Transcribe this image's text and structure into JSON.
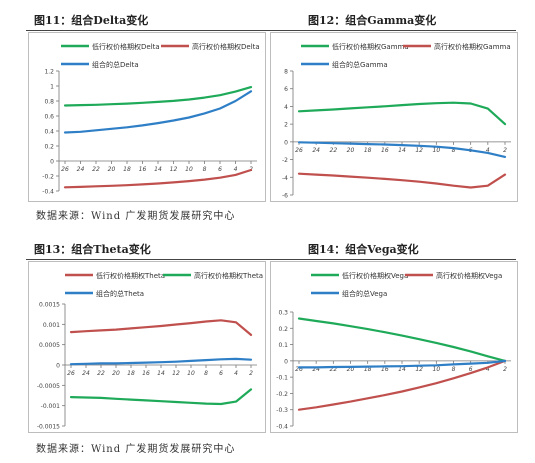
{
  "panels": [
    {
      "title": "图11：组合Delta变化"
    },
    {
      "title": "图12：组合Gamma变化"
    },
    {
      "title": "图13：组合Theta变化"
    },
    {
      "title": "图14：组合Vega变化"
    }
  ],
  "source_text": "数据来源：Wind 广发期货发展研究中心",
  "colors": {
    "green": "#1faa59",
    "red": "#c0504d",
    "blue": "#2f7fc7"
  },
  "chart_data": [
    {
      "type": "line",
      "title": "",
      "x": [
        26,
        24,
        22,
        20,
        18,
        16,
        14,
        12,
        10,
        8,
        6,
        4,
        2
      ],
      "xticks": [
        "26",
        "24",
        "22",
        "20",
        "18",
        "16",
        "14",
        "12",
        "10",
        "8",
        "6",
        "4",
        "2"
      ],
      "yticks": [
        "1.2",
        "1",
        "0.8",
        "0.6",
        "0.4",
        "0.2",
        "0",
        "-0.2",
        "-0.4"
      ],
      "ylim": [
        -0.4,
        1.2
      ],
      "grid": false,
      "legend_position": "top",
      "series": [
        {
          "name": "低行权价格期权Delta",
          "color": "green",
          "values": [
            0.74,
            0.745,
            0.75,
            0.758,
            0.766,
            0.776,
            0.788,
            0.802,
            0.82,
            0.845,
            0.878,
            0.925,
            0.985
          ]
        },
        {
          "name": "高行权价格期权Delta",
          "color": "red",
          "values": [
            -0.35,
            -0.345,
            -0.338,
            -0.33,
            -0.322,
            -0.312,
            -0.3,
            -0.285,
            -0.268,
            -0.248,
            -0.222,
            -0.185,
            -0.12
          ]
        },
        {
          "name": "组合的总Delta",
          "color": "blue",
          "values": [
            0.38,
            0.39,
            0.41,
            0.43,
            0.45,
            0.475,
            0.505,
            0.54,
            0.58,
            0.635,
            0.7,
            0.8,
            0.93
          ]
        }
      ]
    },
    {
      "type": "line",
      "title": "",
      "x": [
        26,
        24,
        22,
        20,
        18,
        16,
        14,
        12,
        10,
        8,
        6,
        4,
        2
      ],
      "xticks": [
        "26",
        "24",
        "22",
        "20",
        "18",
        "16",
        "14",
        "12",
        "10",
        "8",
        "6",
        "4",
        "2"
      ],
      "yticks": [
        "8",
        "6",
        "4",
        "2",
        "0",
        "-2",
        "-4",
        "-6"
      ],
      "ylim": [
        -6,
        8
      ],
      "grid": false,
      "legend_position": "top",
      "series": [
        {
          "name": "低行权价格期权Gamma",
          "color": "green",
          "values": [
            3.45,
            3.55,
            3.65,
            3.78,
            3.9,
            4.02,
            4.15,
            4.27,
            4.37,
            4.42,
            4.33,
            3.75,
            2.0
          ]
        },
        {
          "name": "高行权价格期权Gamma",
          "color": "red",
          "values": [
            -3.6,
            -3.7,
            -3.8,
            -3.92,
            -4.05,
            -4.18,
            -4.33,
            -4.5,
            -4.7,
            -4.95,
            -5.15,
            -4.95,
            -3.7
          ]
        },
        {
          "name": "组合的总Gamma",
          "color": "blue",
          "values": [
            -0.05,
            -0.1,
            -0.15,
            -0.2,
            -0.25,
            -0.3,
            -0.37,
            -0.45,
            -0.55,
            -0.7,
            -0.95,
            -1.25,
            -1.7
          ]
        }
      ]
    },
    {
      "type": "line",
      "title": "",
      "x": [
        26,
        24,
        22,
        20,
        18,
        16,
        14,
        12,
        10,
        8,
        6,
        4,
        2
      ],
      "xticks": [
        "26",
        "24",
        "22",
        "20",
        "18",
        "16",
        "14",
        "12",
        "10",
        "8",
        "6",
        "4",
        "2"
      ],
      "yticks": [
        "0.0015",
        "0.001",
        "0.0005",
        "0",
        "-0.0005",
        "-0.001",
        "-0.0015"
      ],
      "ylim": [
        -0.0015,
        0.0015
      ],
      "grid": false,
      "legend_position": "top",
      "series": [
        {
          "name": "低行权价格期权Theta",
          "color": "red",
          "values": [
            0.00081,
            0.00083,
            0.00085,
            0.00087,
            0.0009,
            0.00093,
            0.00096,
            0.000995,
            0.00103,
            0.00107,
            0.0011,
            0.00105,
            0.00074
          ]
        },
        {
          "name": "高行权价格期权Theta",
          "color": "green",
          "values": [
            -0.00079,
            -0.0008,
            -0.00081,
            -0.00083,
            -0.00085,
            -0.00087,
            -0.00089,
            -0.00091,
            -0.00093,
            -0.00095,
            -0.00096,
            -0.0009,
            -0.0006
          ]
        },
        {
          "name": "组合的总Theta",
          "color": "blue",
          "values": [
            2e-05,
            3e-05,
            4e-05,
            4e-05,
            5e-05,
            6e-05,
            7e-05,
            8e-05,
            0.0001,
            0.00012,
            0.00014,
            0.00015,
            0.00013
          ]
        }
      ]
    },
    {
      "type": "line",
      "title": "",
      "x": [
        26,
        24,
        22,
        20,
        18,
        16,
        14,
        12,
        10,
        8,
        6,
        4,
        2
      ],
      "xticks": [
        "26",
        "24",
        "22",
        "20",
        "18",
        "16",
        "14",
        "12",
        "10",
        "8",
        "6",
        "4",
        "2"
      ],
      "yticks": [
        "0.3",
        "0.2",
        "0.1",
        "0",
        "-0.1",
        "-0.2",
        "-0.3",
        "-0.4"
      ],
      "ylim": [
        -0.4,
        0.3
      ],
      "grid": false,
      "legend_position": "top",
      "series": [
        {
          "name": "低行权价格期权Vega",
          "color": "green",
          "values": [
            0.26,
            0.245,
            0.23,
            0.213,
            0.195,
            0.176,
            0.155,
            0.133,
            0.11,
            0.085,
            0.058,
            0.028,
            0.0
          ]
        },
        {
          "name": "高行权价格期权Vega",
          "color": "red",
          "values": [
            -0.3,
            -0.285,
            -0.268,
            -0.25,
            -0.23,
            -0.21,
            -0.188,
            -0.163,
            -0.137,
            -0.107,
            -0.075,
            -0.04,
            0.0
          ]
        },
        {
          "name": "组合的总Vega",
          "color": "blue",
          "values": [
            -0.04,
            -0.04,
            -0.038,
            -0.037,
            -0.035,
            -0.034,
            -0.033,
            -0.03,
            -0.027,
            -0.022,
            -0.017,
            -0.012,
            0.0
          ]
        }
      ]
    }
  ]
}
